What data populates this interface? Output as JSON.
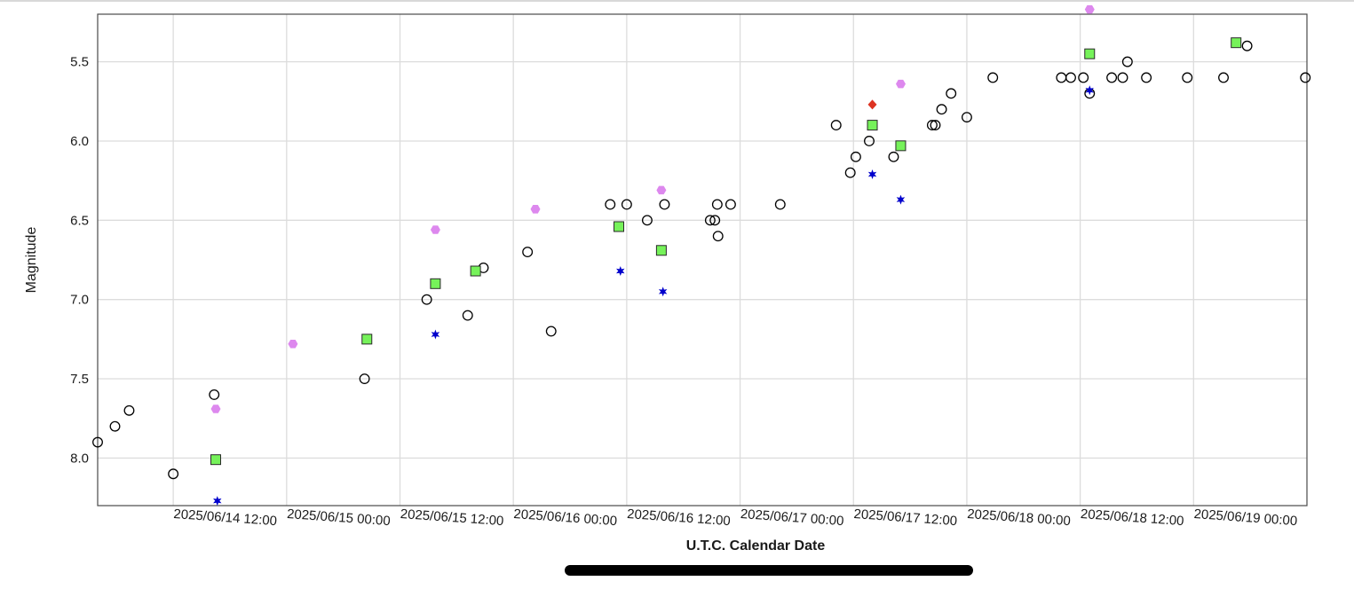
{
  "chart_data": {
    "type": "scatter",
    "title": "",
    "xlabel": "U.T.C. Calendar Date",
    "ylabel": "Magnitude",
    "y_inverted": true,
    "ylim": [
      8.3,
      5.2
    ],
    "yticks": [
      5.5,
      6.0,
      6.5,
      7.0,
      7.5,
      8.0
    ],
    "ytick_labels": [
      "5.5",
      "6.0",
      "6.5",
      "7.0",
      "7.5",
      "8.0"
    ],
    "xlim": [
      "2025/06/14 04:00",
      "2025/06/19 12:00"
    ],
    "xticks": [
      "2025/06/14 12:00",
      "2025/06/15 00:00",
      "2025/06/15 12:00",
      "2025/06/16 00:00",
      "2025/06/16 12:00",
      "2025/06/17 00:00",
      "2025/06/17 12:00",
      "2025/06/18 00:00",
      "2025/06/18 12:00",
      "2025/06/19 00:00"
    ],
    "xtick_labels": [
      "2025/06/14 12:00",
      "2025/06/15 00:00",
      "2025/06/15 12:00",
      "2025/06/16 00:00",
      "2025/06/16 12:00",
      "2025/06/17 00:00",
      "2025/06/17 12:00",
      "2025/06/18 00:00",
      "2025/06/18 12:00",
      "2025/06/19 00:00"
    ],
    "grid": true,
    "series": [
      {
        "marker": "open-circle",
        "color": "#000000",
        "x": [
          "2025/06/14 04:00",
          "2025/06/14 05:50",
          "2025/06/14 07:20",
          "2025/06/14 12:00",
          "2025/06/14 16:20",
          "2025/06/15 08:15",
          "2025/06/15 14:50",
          "2025/06/15 19:10",
          "2025/06/15 20:50",
          "2025/06/16 01:30",
          "2025/06/16 04:00",
          "2025/06/16 10:15",
          "2025/06/16 12:00",
          "2025/06/16 14:10",
          "2025/06/16 16:00",
          "2025/06/16 20:50",
          "2025/06/16 21:20",
          "2025/06/16 21:35",
          "2025/06/16 21:40",
          "2025/06/16 23:00",
          "2025/06/17 04:15",
          "2025/06/17 10:10",
          "2025/06/17 11:40",
          "2025/06/17 12:15",
          "2025/06/17 13:40",
          "2025/06/17 16:15",
          "2025/06/17 20:40",
          "2025/06/17 20:20",
          "2025/06/17 21:20",
          "2025/06/17 22:20",
          "2025/06/18 00:00",
          "2025/06/18 02:45",
          "2025/06/18 10:00",
          "2025/06/18 11:00",
          "2025/06/18 12:20",
          "2025/06/18 13:00",
          "2025/06/18 15:20",
          "2025/06/18 16:30",
          "2025/06/18 17:00",
          "2025/06/18 19:00",
          "2025/06/18 23:20",
          "2025/06/19 03:10",
          "2025/06/19 05:40",
          "2025/06/19 11:50"
        ],
        "y": [
          7.9,
          7.8,
          7.7,
          8.1,
          7.6,
          7.5,
          7.0,
          7.1,
          6.8,
          6.7,
          7.2,
          6.4,
          6.4,
          6.5,
          6.4,
          6.5,
          6.5,
          6.4,
          6.6,
          6.4,
          6.4,
          5.9,
          6.2,
          6.1,
          6.0,
          6.1,
          5.9,
          5.9,
          5.8,
          5.7,
          5.85,
          5.6,
          5.6,
          5.6,
          5.6,
          5.7,
          5.6,
          5.6,
          5.5,
          5.6,
          5.6,
          5.6,
          5.4,
          5.6
        ]
      },
      {
        "marker": "square",
        "color": "#76f25a",
        "x": [
          "2025/06/14 16:30",
          "2025/06/15 08:30",
          "2025/06/15 15:45",
          "2025/06/15 20:00",
          "2025/06/16 11:10",
          "2025/06/16 15:40",
          "2025/06/17 14:00",
          "2025/06/17 17:00",
          "2025/06/18 13:00",
          "2025/06/19 04:30"
        ],
        "y": [
          8.01,
          7.25,
          6.9,
          6.82,
          6.54,
          6.69,
          5.9,
          6.03,
          5.45,
          5.38
        ]
      },
      {
        "marker": "star",
        "color": "#0000cc",
        "x": [
          "2025/06/14 16:40",
          "2025/06/15 15:45",
          "2025/06/16 11:20",
          "2025/06/16 15:50",
          "2025/06/17 14:00",
          "2025/06/17 17:00",
          "2025/06/18 13:00"
        ],
        "y": [
          8.27,
          7.22,
          6.82,
          6.95,
          6.21,
          6.37,
          5.68
        ]
      },
      {
        "marker": "hexagon",
        "color": "#dd88ee",
        "x": [
          "2025/06/14 16:30",
          "2025/06/15 00:40",
          "2025/06/15 15:45",
          "2025/06/16 02:20",
          "2025/06/16 15:40",
          "2025/06/17 17:00",
          "2025/06/18 13:00"
        ],
        "y": [
          7.69,
          7.28,
          6.56,
          6.43,
          6.31,
          5.64,
          5.17
        ]
      },
      {
        "marker": "diamond",
        "color": "#dd3322",
        "x": [
          "2025/06/17 14:00"
        ],
        "y": [
          5.77
        ]
      }
    ]
  }
}
